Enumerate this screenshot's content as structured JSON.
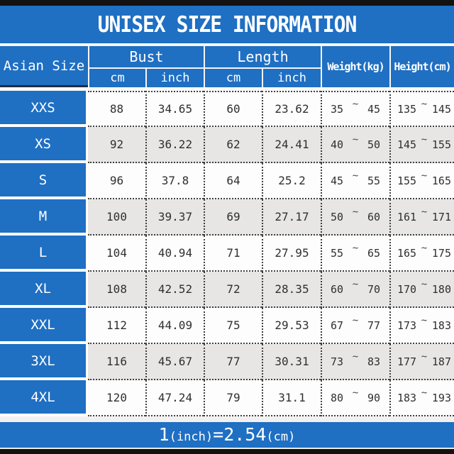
{
  "title": "UNISEX SIZE INFORMATION",
  "tilde": "~",
  "header": {
    "size_label": "Asian Size",
    "bust_label": "Bust",
    "length_label": "Length",
    "weight_label": "Weight(kg)",
    "height_label": "Height(cm)",
    "unit_cm": "cm",
    "unit_inch": "inch"
  },
  "rows": [
    {
      "size": "XXS",
      "bust_cm": "88",
      "bust_inch": "34.65",
      "length_cm": "60",
      "length_inch": "23.62",
      "weight_min": "35",
      "weight_max": "45",
      "height_min": "135",
      "height_max": "145"
    },
    {
      "size": "XS",
      "bust_cm": "92",
      "bust_inch": "36.22",
      "length_cm": "62",
      "length_inch": "24.41",
      "weight_min": "40",
      "weight_max": "50",
      "height_min": "145",
      "height_max": "155"
    },
    {
      "size": "S",
      "bust_cm": "96",
      "bust_inch": "37.8",
      "length_cm": "64",
      "length_inch": "25.2",
      "weight_min": "45",
      "weight_max": "55",
      "height_min": "155",
      "height_max": "165"
    },
    {
      "size": "M",
      "bust_cm": "100",
      "bust_inch": "39.37",
      "length_cm": "69",
      "length_inch": "27.17",
      "weight_min": "50",
      "weight_max": "60",
      "height_min": "161",
      "height_max": "171"
    },
    {
      "size": "L",
      "bust_cm": "104",
      "bust_inch": "40.94",
      "length_cm": "71",
      "length_inch": "27.95",
      "weight_min": "55",
      "weight_max": "65",
      "height_min": "165",
      "height_max": "175"
    },
    {
      "size": "XL",
      "bust_cm": "108",
      "bust_inch": "42.52",
      "length_cm": "72",
      "length_inch": "28.35",
      "weight_min": "60",
      "weight_max": "70",
      "height_min": "170",
      "height_max": "180"
    },
    {
      "size": "XXL",
      "bust_cm": "112",
      "bust_inch": "44.09",
      "length_cm": "75",
      "length_inch": "29.53",
      "weight_min": "67",
      "weight_max": "77",
      "height_min": "173",
      "height_max": "183"
    },
    {
      "size": "3XL",
      "bust_cm": "116",
      "bust_inch": "45.67",
      "length_cm": "77",
      "length_inch": "30.31",
      "weight_min": "73",
      "weight_max": "83",
      "height_min": "177",
      "height_max": "187"
    },
    {
      "size": "4XL",
      "bust_cm": "120",
      "bust_inch": "47.24",
      "length_cm": "79",
      "length_inch": "31.1",
      "weight_min": "80",
      "weight_max": "90",
      "height_min": "183",
      "height_max": "193"
    }
  ],
  "footer": {
    "parts": [
      "1",
      "(inch)",
      "=",
      "2.54",
      "(cm)"
    ]
  },
  "colors": {
    "accent_blue": "#1f6fc3",
    "alt_row": "#e8e6e4",
    "bar_black": "#121212"
  }
}
